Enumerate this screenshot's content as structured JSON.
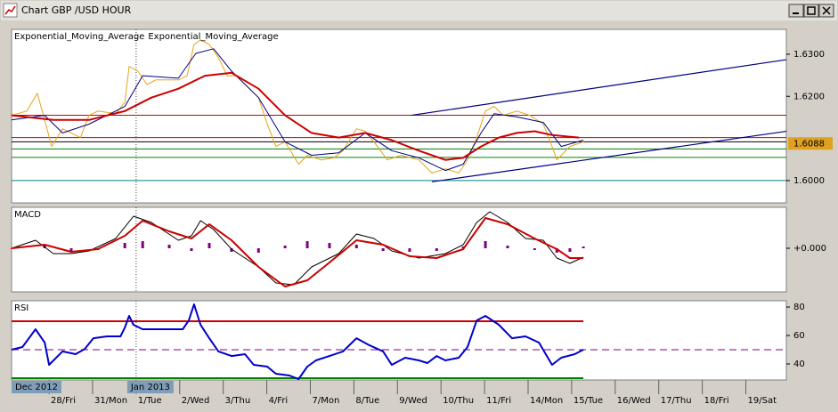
{
  "window": {
    "title": "Chart GBP /USD  HOUR"
  },
  "chart_data": [
    {
      "type": "line",
      "xlim": [
        -0.86,
        16.93
      ],
      "ylim": [
        1.5947,
        1.6359
      ],
      "yticks": [
        {
          "value": 1.63,
          "label": "1.6300"
        },
        {
          "value": 1.62,
          "label": "1.6200"
        },
        {
          "value": 1.6,
          "label": "1.6000"
        }
      ],
      "last_value": 1.6088,
      "last_color": "#e0a020",
      "series": [
        {
          "color": "#e8a317",
          "x": [
            -0.86,
            -0.51,
            -0.27,
            -0.1,
            0.06,
            0.31,
            0.72,
            0.92,
            1.12,
            1.53,
            1.74,
            1.84,
            2.04,
            2.25,
            2.45,
            2.97,
            3.17,
            3.33,
            3.48,
            3.68,
            3.89,
            4.09,
            4.29,
            4.6,
            4.81,
            5.01,
            5.21,
            5.42,
            5.73,
            5.93,
            6.24,
            6.54,
            6.75,
            7.06,
            7.26,
            7.46,
            7.77,
            8.08,
            8.49,
            8.79,
            9.1,
            9.41,
            9.61,
            9.82,
            10.02,
            10.22,
            10.43,
            10.74,
            11.04,
            11.35,
            11.55,
            11.66,
            11.96,
            12.27
          ],
          "values": [
            1.6155,
            1.6165,
            1.6207,
            1.6144,
            1.6081,
            1.6123,
            1.6102,
            1.6155,
            1.6165,
            1.6159,
            1.6186,
            1.6271,
            1.626,
            1.6228,
            1.6239,
            1.6239,
            1.6249,
            1.6323,
            1.6334,
            1.6323,
            1.6292,
            1.6249,
            1.6249,
            1.6218,
            1.6197,
            1.6134,
            1.6081,
            1.6092,
            1.6039,
            1.606,
            1.6049,
            1.6054,
            1.6071,
            1.6123,
            1.6117,
            1.6092,
            1.6049,
            1.606,
            1.6049,
            1.6018,
            1.6028,
            1.6018,
            1.6049,
            1.6102,
            1.6165,
            1.6176,
            1.6155,
            1.6165,
            1.6155,
            1.6134,
            1.6081,
            1.6049,
            1.6081,
            1.6092
          ]
        },
        {
          "name": "Exponential_Moving_Average",
          "color": "#000080",
          "x": [
            -0.86,
            -0.1,
            0.31,
            0.92,
            1.74,
            2.15,
            2.97,
            3.37,
            3.78,
            4.19,
            4.81,
            5.42,
            6.03,
            6.65,
            7.26,
            7.87,
            8.49,
            9.1,
            9.51,
            9.92,
            10.22,
            10.74,
            11.35,
            11.76,
            12.27
          ],
          "values": [
            1.6144,
            1.6155,
            1.6113,
            1.6134,
            1.6176,
            1.6249,
            1.6243,
            1.6302,
            1.6313,
            1.626,
            1.6197,
            1.6092,
            1.606,
            1.6066,
            1.6113,
            1.6071,
            1.6054,
            1.6024,
            1.6039,
            1.6113,
            1.6159,
            1.6151,
            1.6138,
            1.6081,
            1.6096
          ]
        },
        {
          "name": "Exponential_Moving_Average",
          "color": "#cc0000",
          "width": 2,
          "x": [
            -0.86,
            0.1,
            0.92,
            1.74,
            2.35,
            2.97,
            3.58,
            4.19,
            4.81,
            5.42,
            6.03,
            6.65,
            7.26,
            7.87,
            8.49,
            9.1,
            9.51,
            9.92,
            10.33,
            10.74,
            11.15,
            11.55,
            12.17
          ],
          "values": [
            1.6155,
            1.6144,
            1.6144,
            1.6165,
            1.6197,
            1.6218,
            1.6249,
            1.6256,
            1.6218,
            1.6155,
            1.6113,
            1.6102,
            1.6113,
            1.6096,
            1.6071,
            1.6049,
            1.6054,
            1.6081,
            1.6102,
            1.6113,
            1.6117,
            1.6108,
            1.6102
          ]
        }
      ],
      "hlines": [
        {
          "value": 1.6155,
          "color": "#cc0000"
        },
        {
          "value": 1.6102,
          "color": "#cc0000"
        },
        {
          "value": 1.6092,
          "color": "#000000"
        },
        {
          "value": 1.6075,
          "color": "#008000"
        },
        {
          "value": 1.6055,
          "color": "#008000"
        },
        {
          "value": 1.6,
          "color": "#008080"
        }
      ],
      "trendlines": [
        {
          "color": "#000080",
          "x": [
            8.32,
            16.93
          ],
          "values": [
            1.6155,
            1.6287
          ]
        },
        {
          "color": "#000080",
          "x": [
            8.79,
            16.93
          ],
          "values": [
            1.5997,
            1.6117
          ]
        }
      ]
    },
    {
      "type": "line",
      "title": "MACD",
      "xlim": [
        -0.86,
        16.93
      ],
      "ylim": [
        -0.0049,
        0.0046
      ],
      "yticks": [
        {
          "value": 0,
          "label": "+0.000"
        }
      ],
      "series": [
        {
          "type": "bar",
          "color": "#800080",
          "x": [
            -0.86,
            -0.1,
            0.51,
            1.12,
            1.74,
            2.15,
            2.76,
            3.27,
            3.68,
            4.19,
            4.81,
            5.42,
            5.93,
            6.44,
            7.06,
            7.67,
            8.28,
            8.9,
            9.51,
            10.02,
            10.53,
            11.15,
            11.66,
            11.96,
            12.27
          ],
          "values": [
            0,
            0.0003,
            -0.0005,
            -0.0002,
            0.0006,
            0.0008,
            0.0004,
            -0.0003,
            0.0006,
            -0.0004,
            -0.0005,
            0.0003,
            0.0008,
            0.0006,
            0.0004,
            -0.0003,
            -0.0004,
            -0.0003,
            0.0002,
            0.0008,
            0.0003,
            -0.0002,
            -0.0005,
            -0.0004,
            0.0002
          ]
        },
        {
          "color": "#000000",
          "x": [
            -0.86,
            -0.31,
            0.1,
            0.51,
            0.92,
            1.53,
            1.94,
            2.35,
            2.97,
            3.27,
            3.48,
            3.78,
            4.19,
            4.81,
            5.21,
            5.62,
            6.03,
            6.65,
            7.06,
            7.46,
            7.87,
            8.49,
            9.1,
            9.51,
            9.82,
            10.12,
            10.53,
            10.94,
            11.35,
            11.66,
            11.96,
            12.27
          ],
          "values": [
            0,
            0.0009,
            -0.0006,
            -0.0006,
            -0.0003,
            0.0011,
            0.0036,
            0.0029,
            0.0009,
            0.0014,
            0.0031,
            0.0021,
            -0.0001,
            -0.0021,
            -0.0039,
            -0.0041,
            -0.0021,
            -0.0006,
            0.0016,
            0.0011,
            -0.0003,
            -0.0011,
            -0.0006,
            0.0004,
            0.0029,
            0.0041,
            0.0029,
            0.0011,
            0.0009,
            -0.0011,
            -0.0017,
            -0.001
          ]
        },
        {
          "color": "#cc0000",
          "width": 2,
          "x": [
            -0.86,
            -0.1,
            0.51,
            1.12,
            1.74,
            2.15,
            2.76,
            3.27,
            3.68,
            4.19,
            4.81,
            5.42,
            5.93,
            6.44,
            7.06,
            7.67,
            8.28,
            8.9,
            9.51,
            10.02,
            10.53,
            11.15,
            11.66,
            11.96,
            12.27
          ],
          "values": [
            0,
            0.0004,
            -0.0004,
            -0.0001,
            0.0014,
            0.0031,
            0.0019,
            0.0011,
            0.0027,
            0.0009,
            -0.0021,
            -0.0043,
            -0.0036,
            -0.0016,
            0.0009,
            0.0004,
            -0.0009,
            -0.0011,
            -0.0001,
            0.0034,
            0.0027,
            0.0011,
            -0.0001,
            -0.0011,
            -0.0011
          ]
        }
      ]
    },
    {
      "type": "line",
      "title": "RSI",
      "xlim": [
        -0.86,
        16.93
      ],
      "ylim": [
        28.75,
        84.4
      ],
      "yticks": [
        80,
        60,
        40
      ],
      "xticks": [
        {
          "value": 0,
          "label": "28/Fri"
        },
        {
          "value": 1,
          "label": "31/Mon"
        },
        {
          "value": 2,
          "label": "1/Tue"
        },
        {
          "value": 3,
          "label": "2/Wed"
        },
        {
          "value": 4,
          "label": "3/Thu"
        },
        {
          "value": 5,
          "label": "4/Fri"
        },
        {
          "value": 6,
          "label": "7/Mon"
        },
        {
          "value": 7,
          "label": "8/Tue"
        },
        {
          "value": 8,
          "label": "9/Wed"
        },
        {
          "value": 9,
          "label": "10/Thu"
        },
        {
          "value": 10,
          "label": "11/Fri"
        },
        {
          "value": 11,
          "label": "14/Mon"
        },
        {
          "value": 12,
          "label": "15/Tue"
        },
        {
          "value": 13,
          "label": "16/Wed"
        },
        {
          "value": 14,
          "label": "17/Thu"
        },
        {
          "value": 15,
          "label": "18/Fri"
        },
        {
          "value": 16,
          "label": "19/Sat"
        }
      ],
      "period_labels": [
        {
          "value": -0.86,
          "label": "Dec 2012"
        },
        {
          "value": 2,
          "label": "Jan 2013"
        }
      ],
      "series": [
        {
          "color": "#0000cc",
          "width": 2,
          "x": [
            -0.86,
            -0.61,
            -0.31,
            -0.1,
            0,
            0.31,
            0.61,
            0.82,
            1.02,
            1.33,
            1.64,
            1.74,
            1.84,
            1.94,
            2.15,
            2.45,
            3.07,
            3.21,
            3.33,
            3.48,
            3.68,
            3.89,
            4.19,
            4.5,
            4.7,
            5.01,
            5.21,
            5.52,
            5.73,
            5.93,
            6.13,
            6.44,
            6.75,
            7.06,
            7.36,
            7.67,
            7.87,
            8.18,
            8.49,
            8.69,
            8.9,
            9.1,
            9.41,
            9.61,
            9.82,
            10.02,
            10.33,
            10.63,
            10.94,
            11.25,
            11.55,
            11.76,
            12.07,
            12.27
          ],
          "values": [
            50,
            51.9,
            64.4,
            55,
            39.4,
            48.8,
            46.9,
            50.6,
            58.1,
            59.4,
            59.4,
            65.6,
            73.8,
            67.5,
            64.4,
            64.4,
            64.4,
            70.6,
            81.9,
            67.5,
            58.1,
            48.8,
            45.6,
            46.9,
            39.4,
            38.1,
            33.1,
            31.9,
            29.4,
            38.1,
            42.5,
            45.6,
            48.8,
            58.1,
            53.1,
            48.8,
            39.4,
            44.4,
            42.5,
            40.6,
            45.6,
            42.5,
            44.4,
            51.9,
            70.6,
            73.8,
            67.5,
            58.1,
            59.4,
            55,
            39.4,
            44.4,
            46.9,
            50
          ]
        }
      ],
      "hlines": [
        {
          "value": 70,
          "color": "#cc0000",
          "x_end": 12.27,
          "width": 2
        },
        {
          "value": 50,
          "color": "#800080",
          "dashed": true
        },
        {
          "value": 30,
          "color": "#008000",
          "x_end": 12.27,
          "width": 2
        }
      ]
    }
  ]
}
